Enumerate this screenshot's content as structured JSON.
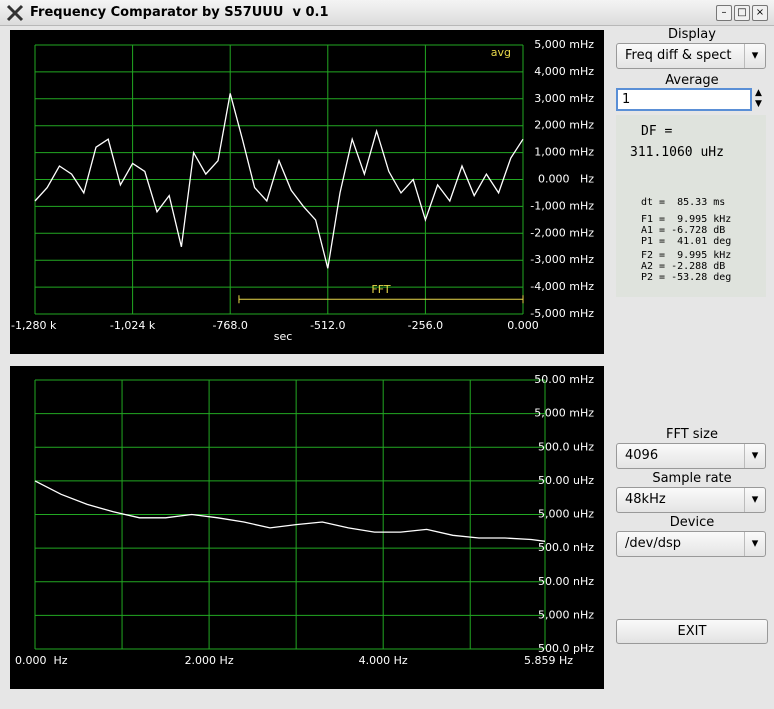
{
  "window_title": "Frequency Comparator by S57UUU  v 0.1",
  "controls": {
    "display_label": "Display",
    "display_value": "Freq diff & spect",
    "average_label": "Average",
    "average_value": "1",
    "fft_size_label": "FFT size",
    "fft_size_value": "4096",
    "sample_rate_label": "Sample rate",
    "sample_rate_value": "48kHz",
    "device_label": "Device",
    "device_value": "/dev/dsp",
    "exit_button": "EXIT"
  },
  "readout": {
    "df_label": "DF =",
    "df_value": "311.1060 uHz",
    "groups": [
      [
        "dt =  85.33 ms"
      ],
      [
        "F1 =  9.995 kHz",
        "A1 = -6.728 dB",
        "P1 =  41.01 deg"
      ],
      [
        "F2 =  9.995 kHz",
        "A2 = -2.288 dB",
        "P2 = -53.28 deg"
      ]
    ]
  },
  "chart_data": [
    {
      "type": "line",
      "x_label": "sec",
      "corner_label": "avg",
      "grid": true,
      "grid_color": "#22a822",
      "xlim": [
        -1280,
        0
      ],
      "ylim": [
        -5000,
        5000
      ],
      "xticks": [
        {
          "value": -1280,
          "label": "-1,280 k"
        },
        {
          "value": -1024,
          "label": "-1,024 k"
        },
        {
          "value": -768,
          "label": "-768.0"
        },
        {
          "value": -512,
          "label": "-512.0"
        },
        {
          "value": -256,
          "label": "-256.0"
        },
        {
          "value": 0,
          "label": "0.000"
        }
      ],
      "yticks": [
        {
          "value": 5000,
          "label": "5,000 mHz"
        },
        {
          "value": 4000,
          "label": "4,000 mHz"
        },
        {
          "value": 3000,
          "label": "3,000 mHz"
        },
        {
          "value": 2000,
          "label": "2,000 mHz"
        },
        {
          "value": 1000,
          "label": "1,000 mHz"
        },
        {
          "value": 0,
          "label": "0.000   Hz"
        },
        {
          "value": -1000,
          "label": "-1,000 mHz"
        },
        {
          "value": -2000,
          "label": "-2,000 mHz"
        },
        {
          "value": -3000,
          "label": "-3,000 mHz"
        },
        {
          "value": -4000,
          "label": "-4,000 mHz"
        },
        {
          "value": -5000,
          "label": "-5,000 mHz"
        }
      ],
      "annotations": [
        {
          "text": "FFT",
          "x": [
            -745,
            0
          ],
          "y": -4450,
          "color": "#e8d84a"
        }
      ],
      "x": [
        -1280,
        -1248,
        -1216,
        -1184,
        -1152,
        -1120,
        -1088,
        -1056,
        -1024,
        -992,
        -960,
        -928,
        -896,
        -864,
        -832,
        -800,
        -768,
        -736,
        -704,
        -672,
        -640,
        -608,
        -576,
        -544,
        -512,
        -480,
        -448,
        -416,
        -384,
        -352,
        -320,
        -288,
        -256,
        -224,
        -192,
        -160,
        -128,
        -96,
        -64,
        -32,
        0
      ],
      "series": [
        {
          "color": "#ffffff",
          "values": [
            -800,
            -300,
            500,
            200,
            -500,
            1200,
            1500,
            -200,
            600,
            300,
            -1200,
            -600,
            -2500,
            1000,
            200,
            700,
            3200,
            1500,
            -300,
            -800,
            700,
            -400,
            -1000,
            -1500,
            -3300,
            -500,
            1500,
            200,
            1800,
            300,
            -500,
            0,
            -1500,
            -200,
            -800,
            500,
            -600,
            200,
            -500,
            800,
            1500
          ]
        }
      ]
    },
    {
      "type": "line",
      "log_y": true,
      "grid": true,
      "grid_color": "#22a822",
      "xlim": [
        0,
        5.859
      ],
      "ylim": [
        5e-10,
        0.05
      ],
      "xticks": [
        {
          "value": 0,
          "label": "0.000  Hz"
        },
        {
          "value": 2,
          "label": "2.000 Hz"
        },
        {
          "value": 4,
          "label": "4.000 Hz"
        },
        {
          "value": 5.859,
          "label": "5.859 Hz"
        }
      ],
      "xgrid": [
        1,
        3,
        5
      ],
      "yticks": [
        {
          "value": 0.05,
          "label": "50.00 mHz"
        },
        {
          "value": 0.005,
          "label": "5,000 mHz"
        },
        {
          "value": 0.0005,
          "label": "500.0 uHz"
        },
        {
          "value": 5e-05,
          "label": "50.00 uHz"
        },
        {
          "value": 5e-06,
          "label": "5,000 uHz"
        },
        {
          "value": 5e-07,
          "label": "500.0 nHz"
        },
        {
          "value": 5e-08,
          "label": "50.00 nHz"
        },
        {
          "value": 5e-09,
          "label": "5,000 nHz"
        },
        {
          "value": 5e-10,
          "label": "500.0 pHz"
        }
      ],
      "x": [
        0,
        0.3,
        0.6,
        0.9,
        1.2,
        1.5,
        1.8,
        2.1,
        2.4,
        2.7,
        3,
        3.3,
        3.6,
        3.9,
        4.2,
        4.5,
        4.8,
        5.1,
        5.4,
        5.7,
        5.859
      ],
      "series": [
        {
          "color": "#ffffff",
          "values": [
            5e-05,
            2e-05,
            1e-05,
            6e-06,
            4e-06,
            4e-06,
            5e-06,
            4e-06,
            3e-06,
            2e-06,
            2.5e-06,
            3e-06,
            2e-06,
            1.5e-06,
            1.5e-06,
            1.8e-06,
            1.2e-06,
            1e-06,
            1e-06,
            9e-07,
            8e-07
          ]
        }
      ]
    }
  ]
}
